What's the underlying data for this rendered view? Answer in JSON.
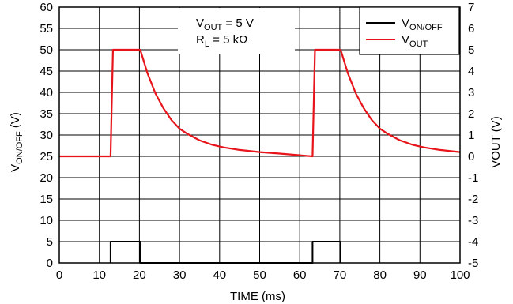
{
  "chart_data": {
    "type": "line",
    "xlabel": "TIME (ms)",
    "ylabel": "V_ON/OFF (V)",
    "ylabel_right": "VOUT (V)",
    "xlim": [
      0,
      100
    ],
    "ylim": [
      0,
      60
    ],
    "ylim_right": [
      -5,
      7
    ],
    "x_ticks": [
      0,
      10,
      20,
      30,
      40,
      50,
      60,
      70,
      80,
      90,
      100
    ],
    "y_ticks": [
      0,
      5,
      10,
      15,
      20,
      25,
      30,
      35,
      40,
      45,
      50,
      55,
      60
    ],
    "y_ticks_right": [
      -5,
      -4,
      -3,
      -2,
      -1,
      0,
      1,
      2,
      3,
      4,
      5,
      6,
      7
    ],
    "grid": true,
    "annotation_lines": [
      {
        "main": "V",
        "sub": "OUT",
        "rest": " = 5 V"
      },
      {
        "main": "R",
        "sub": "L",
        "rest": " = 5 kΩ"
      }
    ],
    "legend_position": "top-right",
    "series": [
      {
        "name": "V_ON/OFF",
        "legend_main": "V",
        "legend_sub": "ON/OFF",
        "color": "#000000",
        "axis": "left",
        "x": [
          12.8,
          12.8,
          20.2,
          20.2,
          63.2,
          63.2,
          70.2,
          70.2
        ],
        "y": [
          0,
          5,
          5,
          0,
          0,
          5,
          5,
          0
        ]
      },
      {
        "name": "V_OUT",
        "legend_main": "V",
        "legend_sub": "OUT",
        "color": "#e8141b",
        "axis": "right",
        "x": [
          0,
          12.8,
          13.4,
          20.2,
          22,
          24,
          26,
          28,
          30,
          32,
          35,
          38,
          41,
          45,
          50,
          55,
          60,
          63.2,
          63.8,
          70.2,
          72,
          74,
          76,
          78,
          80,
          82,
          85,
          88,
          91,
          95,
          100
        ],
        "y": [
          0,
          0,
          5,
          5,
          3.9,
          2.95,
          2.25,
          1.7,
          1.3,
          1.05,
          0.75,
          0.55,
          0.42,
          0.3,
          0.2,
          0.13,
          0.05,
          0,
          5,
          5,
          3.9,
          2.95,
          2.25,
          1.7,
          1.3,
          1.05,
          0.75,
          0.55,
          0.42,
          0.3,
          0.2
        ]
      }
    ]
  }
}
